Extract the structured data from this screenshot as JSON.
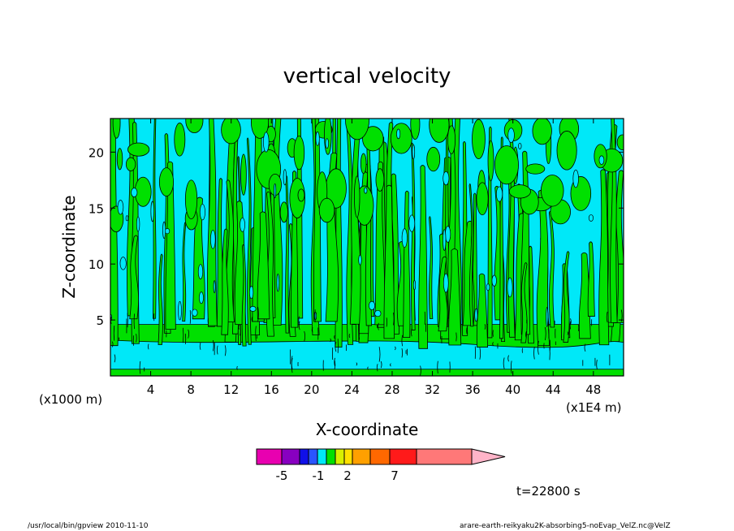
{
  "chart_data": {
    "type": "heatmap",
    "title": "vertical velocity",
    "xlabel": "X-coordinate",
    "ylabel": "Z-coordinate",
    "x_unit_left": "(x1000 m)",
    "x_unit_right": "(x1E4 m)",
    "xlim": [
      0,
      51
    ],
    "ylim": [
      0,
      23
    ],
    "x_ticks": [
      4,
      8,
      12,
      16,
      20,
      24,
      28,
      32,
      36,
      40,
      44,
      48
    ],
    "y_ticks": [
      5,
      10,
      15,
      20
    ],
    "colorbar": {
      "colors": [
        "#e800b0",
        "#8800c0",
        "#1010e8",
        "#2a55ff",
        "#00e8f8",
        "#00e000",
        "#d8f000",
        "#ffe000",
        "#ffa000",
        "#ff6800",
        "#ff1a1a",
        "#ff7878",
        "#ffb4c8"
      ],
      "labels": [
        {
          "text": "-5",
          "level": -5
        },
        {
          "text": "-1",
          "level": -1
        },
        {
          "text": "2",
          "level": 2
        },
        {
          "text": "7",
          "level": 7
        }
      ]
    },
    "field_colors": {
      "negative": "#00e8f8",
      "positive": "#00e000",
      "contour": "#000000"
    },
    "time_label": "t=22800 s"
  },
  "footer": {
    "left": "/usr/local/bin/gpview  2010-11-10",
    "right": "arare-earth-reikyaku2K-absorbing5-noEvap_VelZ.nc@VelZ"
  }
}
